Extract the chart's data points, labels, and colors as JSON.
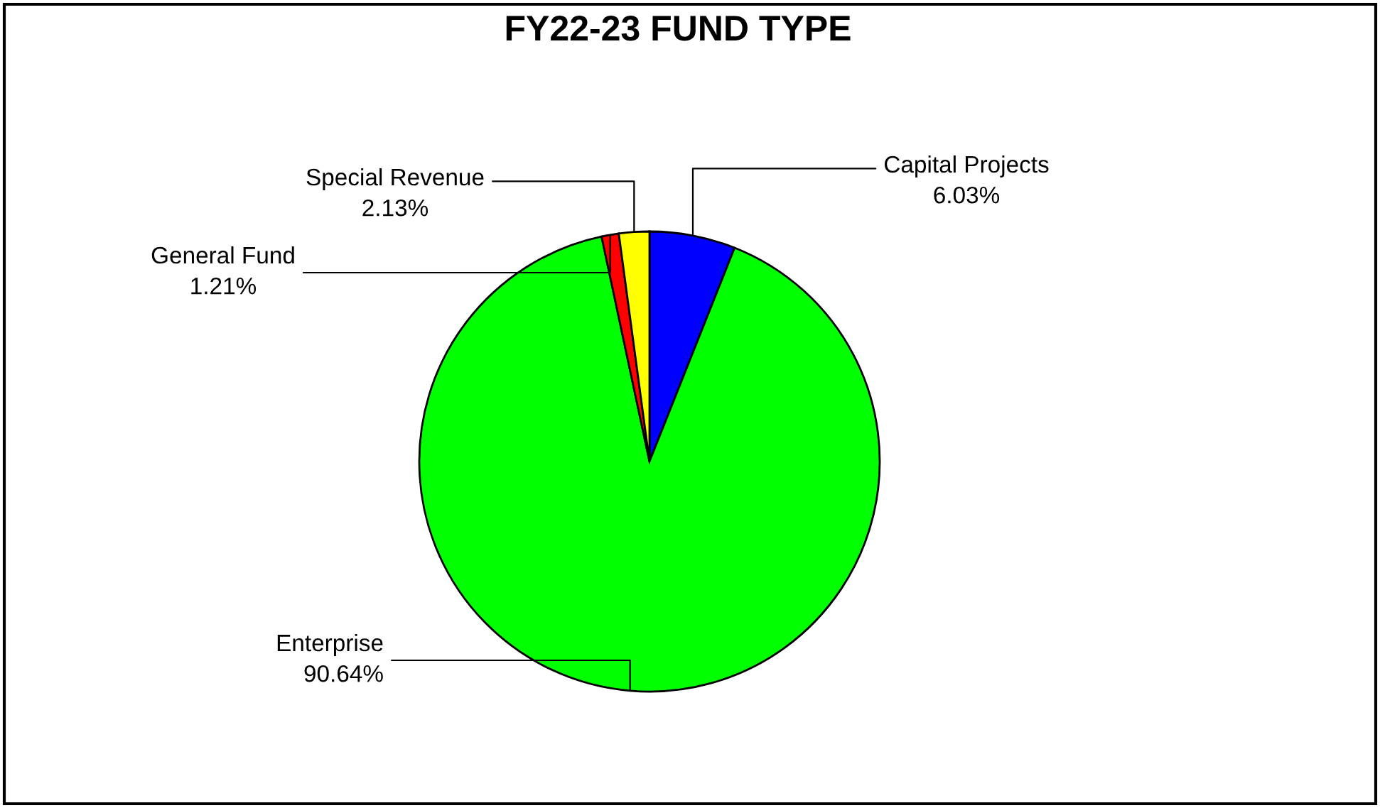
{
  "chart_data": {
    "type": "pie",
    "title": "FY22-23 FUND TYPE",
    "categories": [
      "Capital Projects",
      "Enterprise",
      "General Fund",
      "Special Revenue"
    ],
    "values": [
      6.03,
      90.64,
      1.21,
      2.13
    ],
    "value_labels": [
      "6.03%",
      "90.64%",
      "1.21%",
      "2.13%"
    ],
    "colors": [
      "#0000ff",
      "#00ff00",
      "#ff0000",
      "#ffff00"
    ],
    "legend": false
  }
}
